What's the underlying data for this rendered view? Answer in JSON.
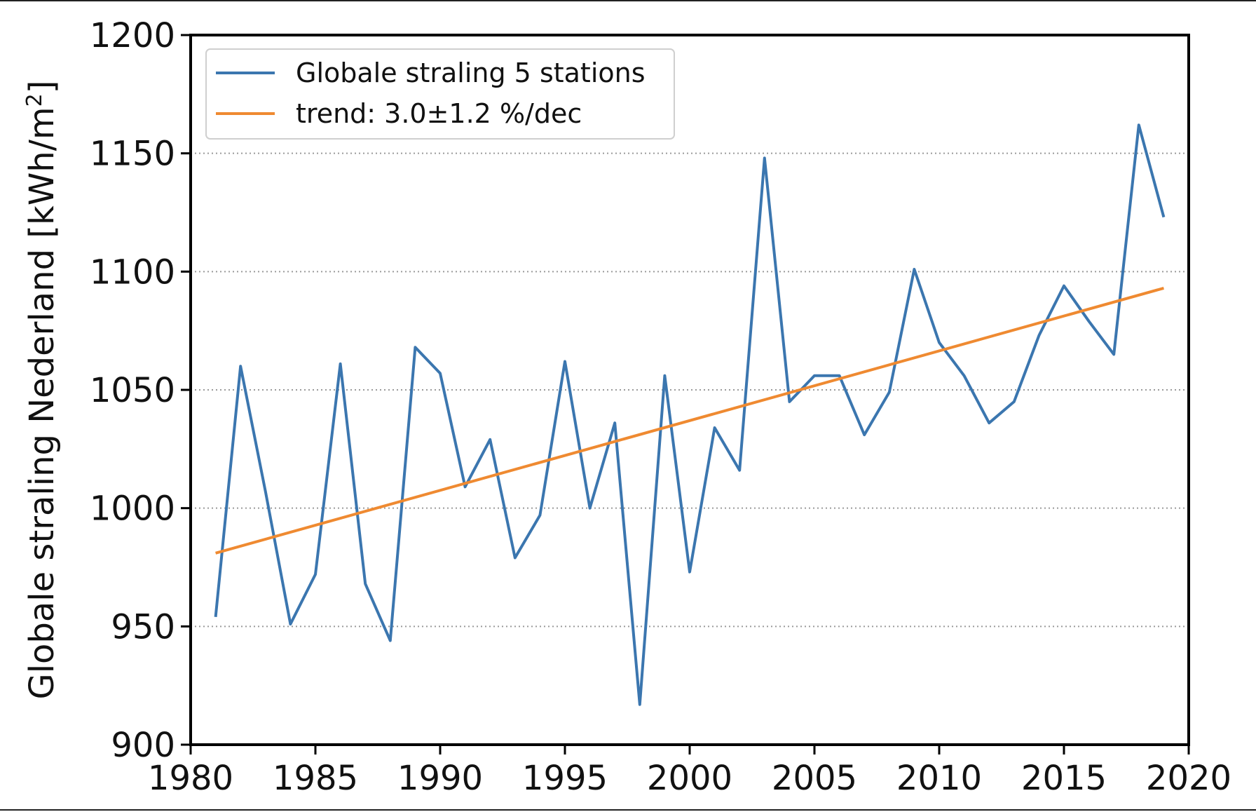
{
  "chart_data": {
    "type": "line",
    "title": "",
    "xlabel": "",
    "ylabel": "Globale straling Nederland [kWh/m²]",
    "ylabel_parts": {
      "main": "Globale straling Nederland [kWh/m",
      "sup": "2",
      "end": "]"
    },
    "xlim": [
      1980,
      2020
    ],
    "ylim": [
      900,
      1200
    ],
    "x_ticks": [
      1980,
      1985,
      1990,
      1995,
      2000,
      2005,
      2010,
      2015,
      2020
    ],
    "y_ticks": [
      900,
      950,
      1000,
      1050,
      1100,
      1150,
      1200
    ],
    "x_tick_labels": [
      "1980",
      "1985",
      "1990",
      "1995",
      "2000",
      "2005",
      "2010",
      "2015",
      "2020"
    ],
    "y_tick_labels": [
      "900",
      "950",
      "1000",
      "1050",
      "1100",
      "1150",
      "1200"
    ],
    "grid": "horizontal dotted",
    "legend_position": "top-left",
    "series": [
      {
        "name": "Globale straling 5 stations",
        "color": "#3b76af",
        "x": [
          1981,
          1982,
          1983,
          1984,
          1985,
          1986,
          1987,
          1988,
          1989,
          1990,
          1991,
          1992,
          1993,
          1994,
          1995,
          1996,
          1997,
          1998,
          1999,
          2000,
          2001,
          2002,
          2003,
          2004,
          2005,
          2006,
          2007,
          2008,
          2009,
          2010,
          2011,
          2012,
          2013,
          2014,
          2015,
          2016,
          2017,
          2018,
          2019
        ],
        "values": [
          954,
          1060,
          1007,
          951,
          972,
          1061,
          968,
          944,
          1068,
          1057,
          1009,
          1029,
          979,
          997,
          1062,
          1000,
          1036,
          917,
          1056,
          973,
          1034,
          1016,
          1148,
          1045,
          1056,
          1056,
          1031,
          1049,
          1101,
          1070,
          1056,
          1036,
          1045,
          1073,
          1094,
          1079,
          1065,
          1162,
          1123
        ]
      },
      {
        "name": "trend: 3.0±1.2 %/dec",
        "color": "#ef8a31",
        "x": [
          1981,
          2019
        ],
        "values": [
          981,
          1093
        ]
      }
    ]
  }
}
